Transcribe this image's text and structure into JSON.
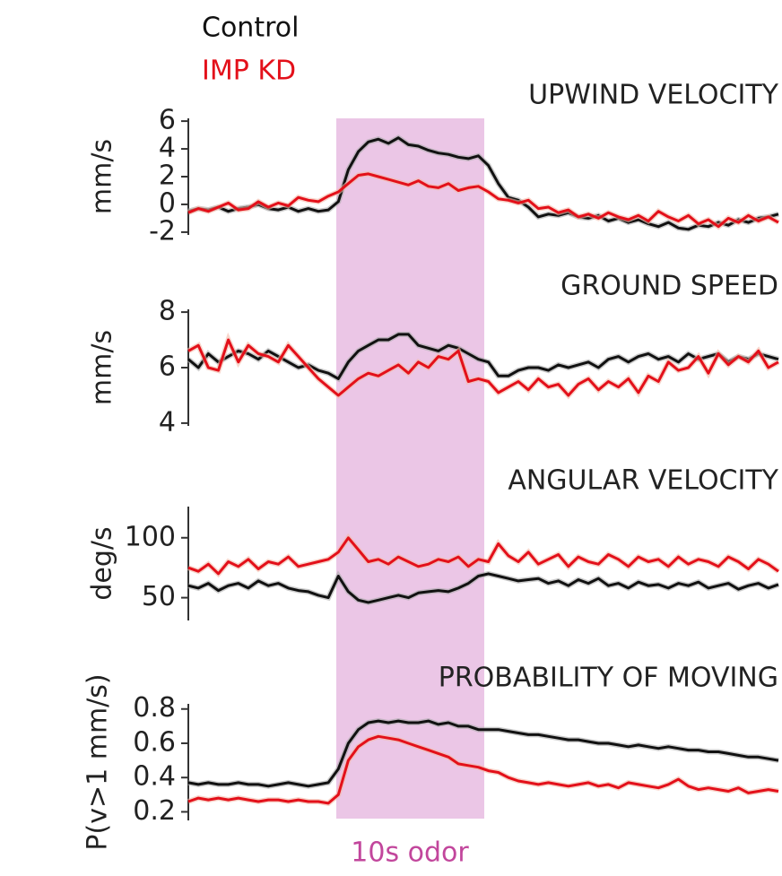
{
  "odor_label": "10s odor",
  "chart_data": [
    {
      "type": "line",
      "title": "UPWIND VELOCITY",
      "ylabel": "mm/s",
      "ylim": [
        -2.2,
        6.2
      ],
      "yticks": [
        6,
        4,
        2,
        0,
        -2
      ],
      "series": [
        {
          "name": "Control",
          "color": "#111111",
          "values": [
            -0.5,
            -0.3,
            -0.4,
            -0.2,
            -0.5,
            -0.3,
            -0.2,
            0,
            -0.3,
            -0.4,
            -0.2,
            -0.5,
            -0.3,
            -0.5,
            -0.4,
            0.2,
            2.5,
            3.8,
            4.5,
            4.7,
            4.4,
            4.8,
            4.3,
            4.2,
            3.9,
            3.7,
            3.6,
            3.4,
            3.3,
            3.5,
            2.8,
            1.5,
            0.5,
            0.3,
            -0.2,
            -0.9,
            -0.7,
            -0.8,
            -0.6,
            -0.9,
            -1.0,
            -0.8,
            -1.2,
            -1.0,
            -1.3,
            -1.1,
            -1.4,
            -1.6,
            -1.3,
            -1.7,
            -1.8,
            -1.5,
            -1.6,
            -1.3,
            -1.5,
            -1.1,
            -1.3,
            -1.0,
            -0.9,
            -0.7
          ]
        },
        {
          "name": "IMP KD",
          "color": "#e3101a",
          "values": [
            -0.6,
            -0.3,
            -0.5,
            -0.2,
            0.1,
            -0.4,
            -0.3,
            0.2,
            -0.2,
            0.1,
            -0.1,
            0.5,
            0.3,
            0.2,
            0.6,
            0.9,
            1.5,
            2.1,
            2.2,
            2.0,
            1.8,
            1.6,
            1.4,
            1.7,
            1.3,
            1.2,
            1.5,
            1.0,
            1.2,
            1.3,
            0.9,
            0.4,
            0.3,
            0.1,
            0.3,
            -0.3,
            -0.2,
            -0.6,
            -0.4,
            -0.9,
            -0.7,
            -1.0,
            -0.6,
            -0.9,
            -1.1,
            -0.8,
            -1.2,
            -0.5,
            -0.9,
            -1.2,
            -0.8,
            -1.4,
            -1.1,
            -1.6,
            -1.0,
            -1.3,
            -0.8,
            -1.2,
            -0.9,
            -1.3
          ]
        }
      ]
    },
    {
      "type": "line",
      "title": "GROUND SPEED",
      "ylabel": "mm/s",
      "ylim": [
        3.9,
        8.1
      ],
      "yticks": [
        8,
        6,
        4
      ],
      "series": [
        {
          "color": "#111111",
          "values": [
            6.3,
            6.0,
            6.5,
            6.2,
            6.4,
            6.6,
            6.5,
            6.3,
            6.6,
            6.4,
            6.2,
            6.0,
            6.1,
            5.9,
            5.8,
            5.6,
            6.2,
            6.6,
            6.8,
            7.0,
            7.0,
            7.2,
            7.2,
            6.8,
            6.7,
            6.6,
            6.8,
            6.7,
            6.5,
            6.3,
            6.2,
            5.7,
            5.7,
            5.9,
            6.0,
            6.0,
            5.9,
            6.1,
            6.0,
            6.1,
            6.2,
            6.0,
            6.3,
            6.4,
            6.2,
            6.4,
            6.5,
            6.3,
            6.4,
            6.2,
            6.5,
            6.3,
            6.4,
            6.5,
            6.2,
            6.4,
            6.3,
            6.5,
            6.4,
            6.3
          ]
        },
        {
          "color": "#e3101a",
          "values": [
            6.6,
            6.8,
            6.0,
            5.9,
            7.0,
            6.2,
            6.8,
            6.5,
            6.4,
            6.2,
            6.8,
            6.4,
            6.0,
            5.6,
            5.3,
            5.0,
            5.3,
            5.6,
            5.8,
            5.7,
            5.9,
            6.1,
            5.8,
            6.2,
            6.0,
            6.4,
            6.3,
            6.6,
            5.5,
            5.6,
            5.5,
            5.1,
            5.3,
            5.5,
            5.2,
            5.6,
            5.3,
            5.4,
            5.0,
            5.4,
            5.6,
            5.2,
            5.5,
            5.3,
            5.6,
            5.1,
            5.7,
            5.5,
            6.2,
            5.9,
            6.0,
            6.4,
            5.8,
            6.5,
            6.1,
            6.4,
            6.2,
            6.6,
            6.0,
            6.2
          ]
        }
      ]
    },
    {
      "type": "line",
      "title": "ANGULAR VELOCITY",
      "ylabel": "deg/s",
      "ylim": [
        31,
        126
      ],
      "yticks": [
        100,
        50
      ],
      "series": [
        {
          "color": "#111111",
          "values": [
            60,
            58,
            62,
            56,
            60,
            62,
            58,
            64,
            60,
            62,
            58,
            56,
            55,
            52,
            50,
            68,
            55,
            48,
            46,
            48,
            50,
            52,
            50,
            54,
            55,
            56,
            55,
            58,
            62,
            68,
            70,
            68,
            66,
            64,
            65,
            66,
            62,
            64,
            60,
            65,
            62,
            66,
            60,
            62,
            58,
            63,
            60,
            61,
            58,
            62,
            60,
            63,
            58,
            60,
            62,
            57,
            60,
            62,
            58,
            61
          ]
        },
        {
          "color": "#e3101a",
          "values": [
            75,
            72,
            78,
            70,
            80,
            76,
            82,
            74,
            80,
            78,
            84,
            76,
            78,
            80,
            82,
            88,
            100,
            90,
            80,
            82,
            78,
            84,
            80,
            76,
            78,
            82,
            80,
            84,
            76,
            82,
            80,
            95,
            85,
            80,
            88,
            78,
            82,
            86,
            76,
            84,
            80,
            78,
            86,
            82,
            76,
            84,
            80,
            82,
            76,
            84,
            78,
            82,
            80,
            76,
            84,
            80,
            74,
            82,
            78,
            72
          ]
        }
      ]
    },
    {
      "type": "line",
      "title": "PROBABILITY OF MOVING",
      "ylabel": "P(v>1 mm/s)",
      "ylim": [
        0.15,
        0.83
      ],
      "yticks": [
        0.8,
        0.6,
        0.4,
        0.2
      ],
      "series": [
        {
          "color": "#111111",
          "values": [
            0.37,
            0.36,
            0.37,
            0.36,
            0.36,
            0.37,
            0.36,
            0.36,
            0.35,
            0.36,
            0.37,
            0.36,
            0.35,
            0.36,
            0.37,
            0.45,
            0.6,
            0.68,
            0.72,
            0.73,
            0.72,
            0.73,
            0.72,
            0.72,
            0.73,
            0.71,
            0.72,
            0.7,
            0.7,
            0.68,
            0.68,
            0.68,
            0.67,
            0.66,
            0.65,
            0.65,
            0.64,
            0.63,
            0.62,
            0.62,
            0.61,
            0.6,
            0.6,
            0.59,
            0.58,
            0.59,
            0.58,
            0.57,
            0.58,
            0.57,
            0.56,
            0.56,
            0.55,
            0.55,
            0.54,
            0.53,
            0.52,
            0.52,
            0.51,
            0.5
          ]
        },
        {
          "color": "#e3101a",
          "values": [
            0.26,
            0.28,
            0.27,
            0.28,
            0.27,
            0.28,
            0.27,
            0.26,
            0.27,
            0.27,
            0.26,
            0.27,
            0.26,
            0.26,
            0.25,
            0.3,
            0.5,
            0.58,
            0.62,
            0.64,
            0.63,
            0.62,
            0.6,
            0.58,
            0.56,
            0.54,
            0.52,
            0.48,
            0.47,
            0.46,
            0.44,
            0.43,
            0.4,
            0.38,
            0.37,
            0.36,
            0.37,
            0.36,
            0.35,
            0.36,
            0.37,
            0.35,
            0.36,
            0.34,
            0.37,
            0.36,
            0.35,
            0.34,
            0.36,
            0.39,
            0.35,
            0.33,
            0.34,
            0.33,
            0.32,
            0.34,
            0.31,
            0.32,
            0.33,
            0.32
          ]
        }
      ]
    }
  ]
}
